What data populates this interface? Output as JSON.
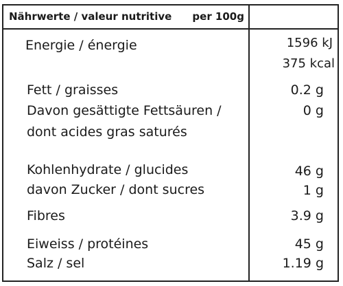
{
  "header": {
    "label": "Nährwerte / valeur nutritive",
    "per": "per 100g"
  },
  "rows": [
    {
      "label": "Energie / énergie",
      "value": "1596 kJ",
      "value2": "375 kcal"
    },
    {
      "label": "Fett / graisses",
      "value": "0.2 g"
    },
    {
      "label": "Davon gesättigte Fettsäuren /",
      "label2": "dont acides gras saturés",
      "value": "0 g"
    },
    {
      "label": "Kohlenhydrate / glucides",
      "value": "46 g"
    },
    {
      "label": "davon Zucker / dont sucres",
      "value": "1 g"
    },
    {
      "label": "Fibres",
      "value": "3.9 g"
    },
    {
      "label": "Eiweiss / protéines",
      "value": "45 g"
    },
    {
      "label": "Salz / sel",
      "value": "1.19 g"
    }
  ]
}
